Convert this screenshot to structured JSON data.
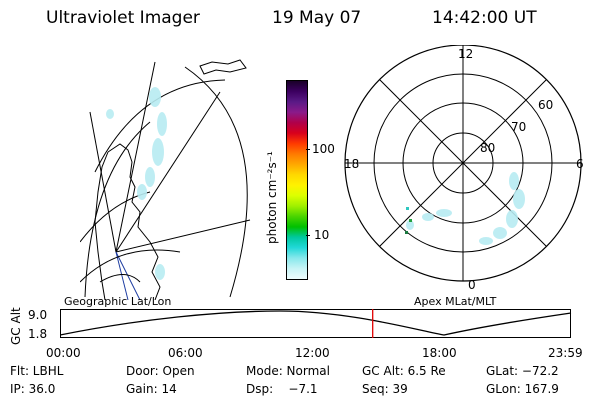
{
  "header": {
    "title": "Ultraviolet Imager",
    "date": "19 May 07",
    "time": "14:42:00 UT"
  },
  "colorbar": {
    "label": "photon cm⁻²s⁻¹",
    "ticks": [
      "100",
      "10"
    ],
    "colors": [
      "#1a0028",
      "#3c0060",
      "#5a1a86",
      "#8a1a8a",
      "#b0004a",
      "#d8001c",
      "#ff3a00",
      "#ff7a00",
      "#ffa800",
      "#ffd800",
      "#fff200",
      "#dcff00",
      "#a0f000",
      "#4ad400",
      "#00c000",
      "#00c8a0",
      "#22d8d8",
      "#88e8ec",
      "#c8f4f6",
      "#eefcfd"
    ]
  },
  "left_map": {
    "caption": "Geographic Lat/Lon"
  },
  "polar_plot": {
    "caption": "Apex MLat/MLT",
    "mlt_labels": {
      "top": "12",
      "left": "18",
      "right": "6",
      "bottom": "0"
    },
    "lat_labels": [
      "60",
      "70",
      "80"
    ]
  },
  "orbit_plot": {
    "y_axis_label": "GC Alt",
    "y_ticks": [
      "9.0",
      "1.8"
    ],
    "x_ticks": [
      "00:00",
      "06:00",
      "12:00",
      "18:00",
      "23:59"
    ],
    "current_time_fraction": 0.612
  },
  "status": {
    "row1": {
      "flt": "Flt: LBHL",
      "door": "Door: Open",
      "mode": "Mode: Normal",
      "gc_alt": "GC Alt: 6.5 Re",
      "glat": "GLat: −72.2"
    },
    "row2": {
      "ip": "IP: 36.0",
      "gain": "Gain: 14",
      "dsp": "Dsp:    −7.1",
      "seq": "Seq: 39",
      "glon": "GLon: 167.9"
    }
  }
}
